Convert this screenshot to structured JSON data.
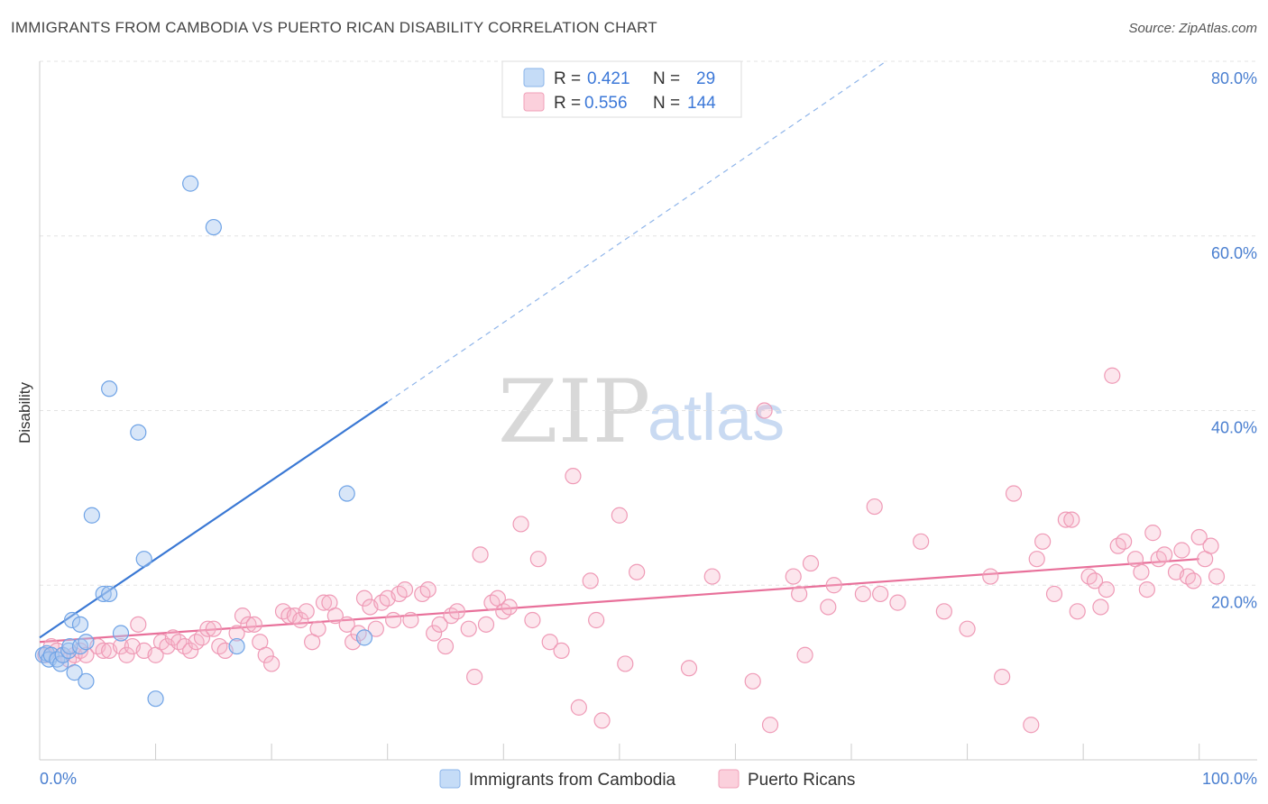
{
  "header": {
    "title": "IMMIGRANTS FROM CAMBODIA VS PUERTO RICAN DISABILITY CORRELATION CHART",
    "source": "Source: ZipAtlas.com"
  },
  "watermark": {
    "zip": "ZIP",
    "atlas": "atlas"
  },
  "legend": {
    "rows": [
      {
        "r_label": "R =",
        "r_value": "0.421",
        "n_label": "N =",
        "n_value": "29",
        "color": "#a9c8f0"
      },
      {
        "r_label": "R =",
        "r_value": "0.556",
        "n_label": "N =",
        "n_value": "144",
        "color": "#f6b8cb"
      }
    ]
  },
  "bottom_legend": [
    {
      "label": "Immigrants from Cambodia",
      "color": "#a9c8f0"
    },
    {
      "label": "Puerto Ricans",
      "color": "#f6b8cb"
    }
  ],
  "chart_data": {
    "type": "scatter",
    "title": "IMMIGRANTS FROM CAMBODIA VS PUERTO RICAN DISABILITY CORRELATION CHART",
    "xlabel": "",
    "ylabel": "Disability",
    "xlim": [
      0,
      105
    ],
    "ylim": [
      0,
      80
    ],
    "x_tick_labels": [
      "0.0%",
      "100.0%"
    ],
    "y_ticks": [
      20,
      40,
      60,
      80
    ],
    "y_tick_labels": [
      "20.0%",
      "40.0%",
      "60.0%",
      "80.0%"
    ],
    "grid": true,
    "series": [
      {
        "name": "Immigrants from Cambodia",
        "color": "#6fa3e6",
        "trend": {
          "x": [
            0,
            30
          ],
          "y": [
            14,
            41
          ],
          "dashed_extension_to": [
            73,
            80
          ]
        },
        "points": [
          [
            0.3,
            12
          ],
          [
            0.6,
            12.2
          ],
          [
            0.8,
            11.5
          ],
          [
            1.0,
            12
          ],
          [
            1.5,
            11.5
          ],
          [
            1.8,
            11
          ],
          [
            2.0,
            12
          ],
          [
            2.5,
            12.5
          ],
          [
            2.6,
            13
          ],
          [
            2.8,
            16
          ],
          [
            3.0,
            10
          ],
          [
            3.5,
            13
          ],
          [
            3.5,
            15.5
          ],
          [
            4.0,
            13.5
          ],
          [
            4.0,
            9
          ],
          [
            4.5,
            28
          ],
          [
            5.5,
            19
          ],
          [
            6.0,
            19
          ],
          [
            6.0,
            42.5
          ],
          [
            7.0,
            14.5
          ],
          [
            8.5,
            37.5
          ],
          [
            9.0,
            23
          ],
          [
            10.0,
            7
          ],
          [
            13.0,
            66
          ],
          [
            15.0,
            61
          ],
          [
            17.0,
            13
          ],
          [
            26.5,
            30.5
          ],
          [
            28.0,
            14
          ]
        ]
      },
      {
        "name": "Puerto Ricans",
        "color": "#ef86a8",
        "trend": {
          "x": [
            0,
            100
          ],
          "y": [
            13.5,
            23
          ]
        },
        "points": [
          [
            0.5,
            12
          ],
          [
            1.0,
            13
          ],
          [
            1.5,
            12.5
          ],
          [
            2.0,
            12
          ],
          [
            2.5,
            11.5
          ],
          [
            3.0,
            12
          ],
          [
            3.5,
            12.5
          ],
          [
            4.0,
            12
          ],
          [
            5.0,
            13
          ],
          [
            5.5,
            12.5
          ],
          [
            6.0,
            12.5
          ],
          [
            7.0,
            13
          ],
          [
            7.5,
            12
          ],
          [
            8.0,
            13
          ],
          [
            8.5,
            15.5
          ],
          [
            9.0,
            12.5
          ],
          [
            10.0,
            12
          ],
          [
            10.5,
            13.5
          ],
          [
            11.0,
            13
          ],
          [
            11.5,
            14
          ],
          [
            12.0,
            13.5
          ],
          [
            12.5,
            13
          ],
          [
            13.0,
            12.5
          ],
          [
            13.5,
            13.5
          ],
          [
            14.0,
            14
          ],
          [
            14.5,
            15
          ],
          [
            15.0,
            15
          ],
          [
            15.5,
            13
          ],
          [
            16.0,
            12.5
          ],
          [
            17.0,
            14.5
          ],
          [
            17.5,
            16.5
          ],
          [
            18.0,
            15.5
          ],
          [
            18.5,
            15.5
          ],
          [
            19.0,
            13.5
          ],
          [
            19.5,
            12
          ],
          [
            20.0,
            11
          ],
          [
            21.0,
            17
          ],
          [
            21.5,
            16.5
          ],
          [
            22.0,
            16.5
          ],
          [
            22.5,
            16
          ],
          [
            23.0,
            17
          ],
          [
            23.5,
            13.5
          ],
          [
            24.0,
            15
          ],
          [
            24.5,
            18
          ],
          [
            25.0,
            18
          ],
          [
            25.5,
            16.5
          ],
          [
            26.5,
            15.5
          ],
          [
            27.0,
            13.5
          ],
          [
            27.5,
            14.5
          ],
          [
            28.0,
            18.5
          ],
          [
            28.5,
            17.5
          ],
          [
            29.0,
            15
          ],
          [
            29.5,
            18
          ],
          [
            30.0,
            18.5
          ],
          [
            30.5,
            16
          ],
          [
            31.0,
            19
          ],
          [
            31.5,
            19.5
          ],
          [
            32.0,
            16
          ],
          [
            33.0,
            19
          ],
          [
            33.5,
            19.5
          ],
          [
            34.0,
            14.5
          ],
          [
            34.5,
            15.5
          ],
          [
            35.0,
            13
          ],
          [
            35.5,
            16.5
          ],
          [
            36.0,
            17
          ],
          [
            37.0,
            15
          ],
          [
            37.5,
            9.5
          ],
          [
            38.0,
            23.5
          ],
          [
            38.5,
            15.5
          ],
          [
            39.0,
            18
          ],
          [
            39.5,
            18.5
          ],
          [
            40.0,
            17
          ],
          [
            40.5,
            17.5
          ],
          [
            41.5,
            27
          ],
          [
            42.5,
            16
          ],
          [
            43.0,
            23
          ],
          [
            44.0,
            13.5
          ],
          [
            45.0,
            12.5
          ],
          [
            46.0,
            32.5
          ],
          [
            46.5,
            6
          ],
          [
            47.5,
            20.5
          ],
          [
            48.0,
            16
          ],
          [
            48.5,
            4.5
          ],
          [
            50.0,
            28
          ],
          [
            50.5,
            11
          ],
          [
            51.5,
            21.5
          ],
          [
            56.0,
            10.5
          ],
          [
            58.0,
            21
          ],
          [
            61.5,
            9
          ],
          [
            62.5,
            40
          ],
          [
            63.0,
            4
          ],
          [
            65.0,
            21
          ],
          [
            65.5,
            19
          ],
          [
            66.0,
            12
          ],
          [
            66.5,
            22.5
          ],
          [
            68.0,
            17.5
          ],
          [
            68.5,
            20
          ],
          [
            71.0,
            19
          ],
          [
            72.0,
            29
          ],
          [
            72.5,
            19
          ],
          [
            74.0,
            18
          ],
          [
            76.0,
            25
          ],
          [
            78.0,
            17
          ],
          [
            80.0,
            15
          ],
          [
            82.0,
            21
          ],
          [
            83.0,
            9.5
          ],
          [
            84.0,
            30.5
          ],
          [
            85.5,
            4
          ],
          [
            86.0,
            23
          ],
          [
            86.5,
            25
          ],
          [
            87.5,
            19
          ],
          [
            88.5,
            27.5
          ],
          [
            89.0,
            27.5
          ],
          [
            89.5,
            17
          ],
          [
            90.5,
            21
          ],
          [
            91.0,
            20.5
          ],
          [
            91.5,
            17.5
          ],
          [
            92.0,
            19.5
          ],
          [
            92.5,
            44
          ],
          [
            93.0,
            24.5
          ],
          [
            93.5,
            25
          ],
          [
            94.5,
            23
          ],
          [
            95.0,
            21.5
          ],
          [
            95.5,
            19.5
          ],
          [
            96.0,
            26
          ],
          [
            96.5,
            23
          ],
          [
            97.0,
            23.5
          ],
          [
            98.0,
            21.5
          ],
          [
            98.5,
            24
          ],
          [
            99.0,
            21
          ],
          [
            99.5,
            20.5
          ],
          [
            100.0,
            25.5
          ],
          [
            100.5,
            23
          ],
          [
            101.0,
            24.5
          ],
          [
            101.5,
            21
          ]
        ]
      }
    ]
  }
}
